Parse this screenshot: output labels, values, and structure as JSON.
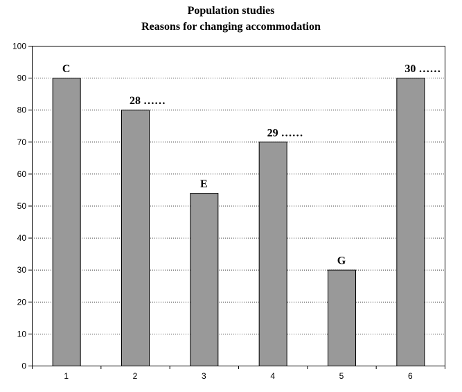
{
  "chart_data": {
    "type": "bar",
    "title": "Population studies",
    "subtitle": "Reasons for changing accommodation",
    "xlabel": "",
    "ylabel": "",
    "categories": [
      "1",
      "2",
      "3",
      "4",
      "5",
      "6"
    ],
    "values": [
      90,
      80,
      54,
      70,
      30,
      90
    ],
    "bar_labels": [
      "C",
      "28 ……",
      "E",
      "29 ……",
      "G",
      "30 ……"
    ],
    "ylim": [
      0,
      100
    ],
    "yticks": [
      0,
      10,
      20,
      30,
      40,
      50,
      60,
      70,
      80,
      90,
      100
    ],
    "grid": true,
    "bar_color": "#999999"
  }
}
